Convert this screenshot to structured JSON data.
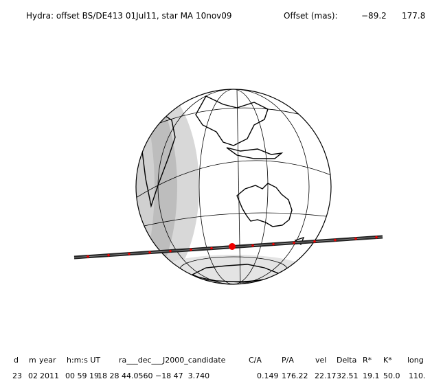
{
  "header": {
    "title": "Hydra: offset BS/DE413 01Jul11, star MA 10nov09",
    "offset_label": "Offset (mas):",
    "offset_values": [
      "−89.2",
      "177.8"
    ]
  },
  "table": {
    "columns": [
      "d",
      "m",
      "year",
      "h:m:s UT",
      "ra___dec___J2000_candidate",
      "C/A",
      "P/A",
      "vel",
      "Delta",
      "R*",
      "K*",
      "long"
    ],
    "rows": [
      [
        "23",
        "02",
        "2011",
        "00 59 19.",
        "18 28 44.0560 −18 47  3.740",
        "0.149",
        "176.22",
        "22.17",
        "32.51",
        "19.1",
        "50.0",
        "110."
      ]
    ]
  }
}
